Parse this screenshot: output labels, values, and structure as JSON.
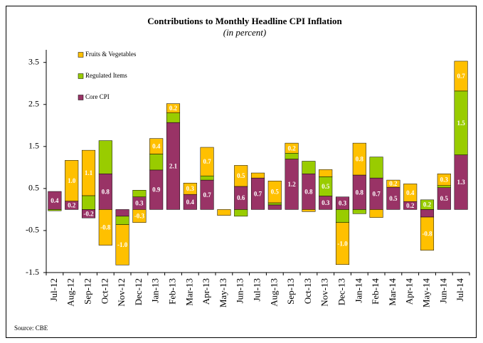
{
  "chart_data": {
    "type": "stacked_bar",
    "title": "Contributions to Monthly Headline CPI Inflation",
    "subtitle": "(in percent)",
    "source": "Source: CBE",
    "categories": [
      "Jul-12",
      "Aug-12",
      "Sep-12",
      "Oct-12",
      "Nov-12",
      "Dec-12",
      "Jan-13",
      "Feb-13",
      "Mar-13",
      "Apr-13",
      "May-13",
      "Jun-13",
      "Jul-13",
      "Aug-13",
      "Sep-13",
      "Oct-13",
      "Nov-13",
      "Dec-13",
      "Jan-14",
      "Feb-14",
      "Mar-14",
      "Apr-14",
      "May-14",
      "Jun-14",
      "Jul-14"
    ],
    "series": [
      {
        "name": "Fruits & Vegetables",
        "color": "#FFC000",
        "values": [
          0,
          0.97,
          1.08,
          -0.85,
          -0.96,
          -0.31,
          0.37,
          0.22,
          0.27,
          0.68,
          -0.14,
          0.5,
          0.12,
          0.52,
          0.24,
          -0.05,
          0.17,
          -1.0,
          0.76,
          -0.19,
          0.17,
          0.42,
          -0.79,
          0.28,
          0.71
        ],
        "value_labels": [
          null,
          "1.0",
          "1.1",
          "-0.8",
          "-1.0",
          "-0.3",
          "0.4",
          "0.2",
          "0.3",
          "0.7",
          null,
          "0.5",
          null,
          "0.5",
          "0.2",
          null,
          null,
          "-1.0",
          "0.8",
          null,
          "0.2",
          "0.4",
          "-0.8",
          "0.3",
          "0.7"
        ]
      },
      {
        "name": "Regulated Items",
        "color": "#99CC00",
        "values": [
          -0.03,
          0,
          0.33,
          0.79,
          -0.2,
          0.16,
          0.38,
          0.23,
          0,
          0.1,
          0,
          -0.16,
          0,
          0.05,
          0.14,
          0.3,
          0.46,
          -0.31,
          -0.1,
          0.5,
          0,
          0,
          0.23,
          0.05,
          1.52
        ],
        "value_labels": [
          null,
          null,
          null,
          null,
          null,
          null,
          null,
          null,
          null,
          null,
          null,
          null,
          null,
          null,
          null,
          null,
          "0.5",
          null,
          null,
          null,
          null,
          null,
          "0.2",
          null,
          "1.5"
        ]
      },
      {
        "name": "Core CPI",
        "color": "#993366",
        "values": [
          0.43,
          0.2,
          -0.2,
          0.85,
          -0.16,
          0.3,
          0.94,
          2.07,
          0.36,
          0.7,
          0,
          0.55,
          0.75,
          0.11,
          1.2,
          0.85,
          0.32,
          0.3,
          0.82,
          0.75,
          0.53,
          0.19,
          -0.18,
          0.52,
          1.3
        ],
        "value_labels": [
          "0.4",
          "0.2",
          "-0.2",
          "0.8",
          null,
          "0.3",
          "0.9",
          "2.1",
          "0.4",
          "0.7",
          null,
          "0.6",
          "0.7",
          null,
          "1.2",
          "0.8",
          "0.3",
          "0.3",
          "0.8",
          "0.7",
          "0.5",
          "0.2",
          null,
          "0.5",
          "1.3"
        ]
      }
    ],
    "ylim": [
      -1.5,
      3.8
    ],
    "yticks": [
      -1.5,
      -0.5,
      0.5,
      1.5,
      2.5,
      3.5
    ],
    "legend": "top-left"
  }
}
